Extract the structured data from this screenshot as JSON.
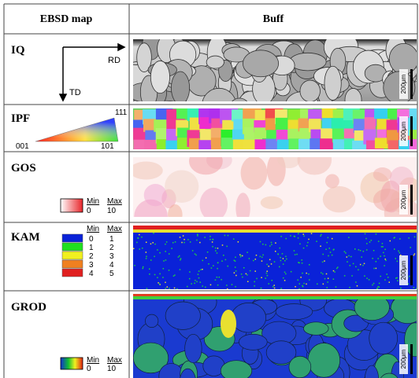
{
  "header": {
    "columns": [
      "EBSD map",
      "Buff"
    ]
  },
  "rows": [
    {
      "label": "IQ",
      "axes": {
        "x": "RD",
        "y": "TD"
      },
      "scale_bar": "200μm"
    },
    {
      "label": "IPF",
      "legend": {
        "top": "111",
        "left": "001",
        "right": "101"
      },
      "scale_bar": "200μm"
    },
    {
      "label": "GOS",
      "legend": {
        "min_header": "Min",
        "max_header": "Max",
        "min": "0",
        "max": "10"
      },
      "scale_bar": "200μm"
    },
    {
      "label": "KAM",
      "legend": {
        "min_header": "Min",
        "max_header": "Max",
        "bins": [
          [
            "0",
            "1"
          ],
          [
            "1",
            "2"
          ],
          [
            "2",
            "3"
          ],
          [
            "3",
            "4"
          ],
          [
            "4",
            "5"
          ]
        ]
      },
      "scale_bar": "200μm"
    },
    {
      "label": "GROD",
      "legend": {
        "min_header": "Min",
        "max_header": "Max",
        "min": "0",
        "max": "10"
      },
      "scale_bar": "200μm"
    }
  ]
}
